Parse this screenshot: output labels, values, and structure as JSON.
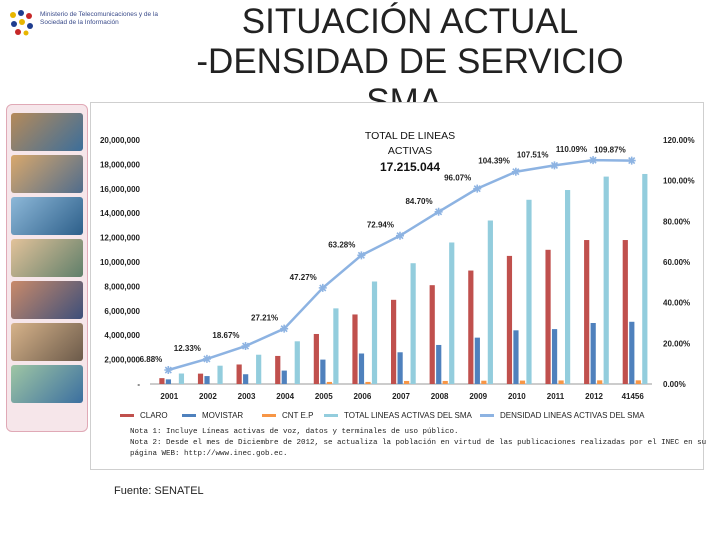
{
  "header": {
    "logo_text": "Ministerio de Telecomunicaciones y de la Sociedad de la Información",
    "title_line1": "SITUACIÓN ACTUAL",
    "title_line2": "-DENSIDAD DE SERVICIO SMA-"
  },
  "notes": {
    "line1": "Nota 1: Incluye Líneas activas de voz, datos y terminales de uso público.",
    "line2": "Nota 2: Desde el mes de Diciembre de 2012, se actualiza la población en virtud de las publicaciones realizadas por el INEC en su",
    "line3": "página WEB: http://www.inec.gob.ec."
  },
  "source": "Fuente: SENATEL",
  "colors": {
    "claro": "#c0504d",
    "movistar": "#4f81bd",
    "cnt": "#f79646",
    "total": "#93cddd",
    "density": "#8db3e2"
  },
  "chart_data": {
    "type": "bar",
    "annotation": {
      "line1": "TOTAL DE LINEAS",
      "line2": "ACTIVAS",
      "value": "17.215.044"
    },
    "categories": [
      "2001",
      "2002",
      "2003",
      "2004",
      "2005",
      "2006",
      "2007",
      "2008",
      "2009",
      "2010",
      "2011",
      "2012",
      "41456"
    ],
    "y_left": {
      "min": 0,
      "max": 20000000,
      "ticks": [
        "-",
        "2,000,000",
        "4,000,000",
        "6,000,000",
        "8,000,000",
        "10,000,000",
        "12,000,000",
        "14,000,000",
        "16,000,000",
        "18,000,000",
        "20,000,000"
      ]
    },
    "y_right": {
      "min": 0,
      "max": 120,
      "ticks": [
        "0.00%",
        "20.00%",
        "40.00%",
        "60.00%",
        "80.00%",
        "100.00%",
        "120.00%"
      ]
    },
    "series": [
      {
        "name": "CLARO",
        "type": "bar",
        "values": [
          480000,
          850000,
          1600000,
          2300000,
          4100000,
          5700000,
          6900000,
          8100000,
          9300000,
          10500000,
          11000000,
          11800000,
          11800000
        ]
      },
      {
        "name": "MOVISTAR",
        "type": "bar",
        "values": [
          380000,
          650000,
          800000,
          1100000,
          2000000,
          2500000,
          2600000,
          3200000,
          3800000,
          4400000,
          4500000,
          5000000,
          5100000
        ]
      },
      {
        "name": "CNT E.P",
        "type": "bar",
        "values": [
          0,
          0,
          0,
          0,
          170000,
          170000,
          250000,
          250000,
          270000,
          280000,
          290000,
          300000,
          300000
        ]
      },
      {
        "name": "TOTAL LINEAS ACTIVAS DEL SMA",
        "type": "bar",
        "values": [
          860000,
          1500000,
          2400000,
          3500000,
          6200000,
          8400000,
          9900000,
          11600000,
          13400000,
          15100000,
          15900000,
          17000000,
          17215044
        ]
      },
      {
        "name": "DENSIDAD LINEAS ACTIVAS DEL SMA",
        "type": "line",
        "axis": "right",
        "values": [
          6.88,
          12.33,
          18.67,
          27.21,
          47.27,
          63.28,
          72.94,
          84.7,
          96.07,
          104.39,
          107.51,
          110.09,
          109.87
        ],
        "labels": [
          "6.88%",
          "12.33%",
          "18.67%",
          "27.21%",
          "47.27%",
          "63.28%",
          "72.94%",
          "84.70%",
          "96.07%",
          "104.39%",
          "107.51%",
          "110.09%",
          "109.87%"
        ]
      }
    ]
  }
}
